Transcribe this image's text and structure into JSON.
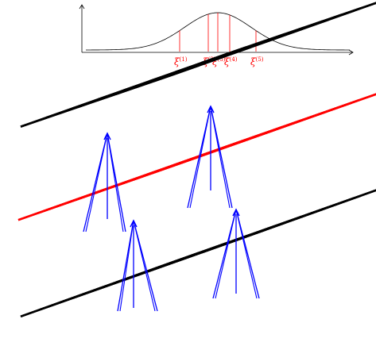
{
  "colors": {
    "grid_outer": "#000000",
    "grid_middle": "#ff0000",
    "arrows": "#0000ff",
    "curve": "#000000",
    "markers": "#ff0000",
    "labels": "#ff0000"
  },
  "curve": {
    "shape": "gaussian",
    "marker_labels": [
      {
        "symbol": "ξ",
        "sup": "(1)"
      },
      {
        "symbol": "ξ",
        "sup": "(2)"
      },
      {
        "symbol": "ξ",
        "sup": "(3)"
      },
      {
        "symbol": "ξ",
        "sup": "(4)"
      },
      {
        "symbol": "ξ",
        "sup": "(5)"
      }
    ]
  },
  "layers": [
    {
      "name": "top-grid",
      "color_key": "grid_outer"
    },
    {
      "name": "middle-grid",
      "color_key": "grid_middle"
    },
    {
      "name": "bottom-grid",
      "color_key": "grid_outer"
    }
  ]
}
